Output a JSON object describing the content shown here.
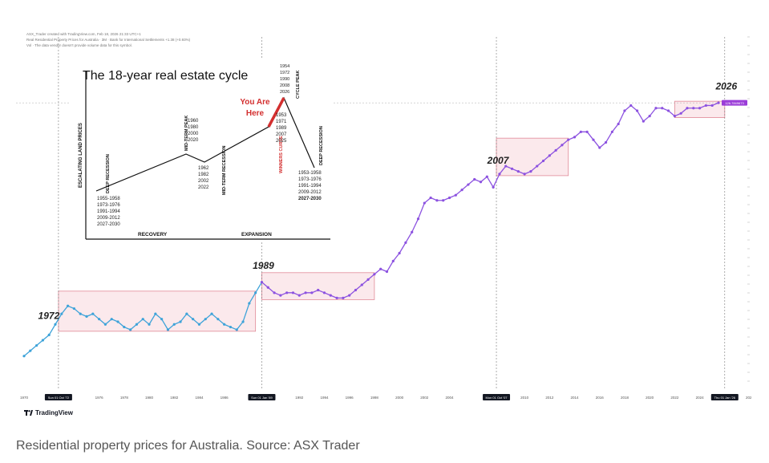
{
  "header": {
    "line1": "ASX_Trader created with TradingView.com, Feb 18, 2026 21:33 UTC+1",
    "line2": "Real Residential Property Prices for Australia · 3M · Bank for International Settlements",
    "line2_value": "+1.38 (+0.93%)",
    "line3": "Vol · The data vendor doesn't provide volume data for this symbol."
  },
  "logo": {
    "text": "TradingView"
  },
  "caption": "Residential property prices for Australia. Source: ASX Trader",
  "price_tag": "126.7849673",
  "colors": {
    "early_line": "#3ea3d9",
    "late_line": "#8c52e0",
    "box_fill": "#fbe9ec",
    "box_stroke": "#e08a98",
    "tag": "#9b3dd8",
    "accent_red": "#d32f2f"
  },
  "chart_data": {
    "type": "line",
    "title": "",
    "annotations": [
      "1972",
      "1989",
      "2007",
      "2026"
    ],
    "x_tick_labels": [
      "1970",
      "Sun 01 Oct '72",
      "1976",
      "1978",
      "1980",
      "1982",
      "1984",
      "1986",
      "Sun 01 Jan '89",
      "1992",
      "1994",
      "1996",
      "1998",
      "2000",
      "2002",
      "2004",
      "Mon 01 Oct '07",
      "2010",
      "2012",
      "2014",
      "2016",
      "2018",
      "2020",
      "2022",
      "2024",
      "Thu 01 Jan '26",
      "2028"
    ],
    "series": [
      {
        "x": [
          1970.0,
          1970.5,
          1971.0,
          1971.5,
          1972.0,
          1972.5,
          1973.0,
          1973.5,
          1974.0,
          1974.5,
          1975.0,
          1975.5,
          1976.0,
          1976.5,
          1977.0,
          1977.5,
          1978.0,
          1978.5,
          1979.0,
          1979.5,
          1980.0,
          1980.5,
          1981.0,
          1981.5,
          1982.0,
          1982.5,
          1983.0,
          1983.5,
          1984.0,
          1984.5,
          1985.0,
          1985.5,
          1986.0,
          1986.5,
          1987.0,
          1987.5,
          1988.0,
          1988.5,
          1989.0
        ],
        "values": [
          28,
          30,
          32,
          34,
          36,
          40,
          44,
          47,
          46,
          44,
          43,
          44,
          42,
          40,
          42,
          41,
          39,
          38,
          40,
          42,
          40,
          44,
          42,
          38,
          40,
          41,
          44,
          42,
          40,
          42,
          44,
          42,
          40,
          39,
          38,
          41,
          48,
          52,
          56
        ]
      },
      {
        "x": [
          1989.0,
          1989.5,
          1990.0,
          1990.5,
          1991.0,
          1991.5,
          1992.0,
          1992.5,
          1993.0,
          1993.5,
          1994.0,
          1994.5,
          1995.0,
          1995.5,
          1996.0,
          1996.5,
          1997.0,
          1997.5,
          1998.0,
          1998.5,
          1999.0,
          1999.5,
          2000.0,
          2000.5,
          2001.0,
          2001.5,
          2002.0,
          2002.5,
          2003.0,
          2003.5,
          2004.0,
          2004.5,
          2005.0,
          2005.5,
          2006.0,
          2006.5,
          2007.0,
          2007.5,
          2008.0,
          2008.5,
          2009.0,
          2009.5,
          2010.0,
          2010.5,
          2011.0,
          2011.5,
          2012.0,
          2012.5,
          2013.0,
          2013.5,
          2014.0,
          2014.5,
          2015.0,
          2015.5,
          2016.0,
          2016.5,
          2017.0,
          2017.5,
          2018.0,
          2018.5,
          2019.0,
          2019.5,
          2020.0,
          2020.5,
          2021.0,
          2021.5,
          2022.0,
          2022.5,
          2023.0,
          2023.5,
          2024.0,
          2024.5,
          2025.0,
          2025.5
        ],
        "values": [
          56,
          54,
          52,
          51,
          52,
          52,
          51,
          52,
          52,
          53,
          52,
          51,
          50,
          50,
          51,
          53,
          55,
          57,
          59,
          61,
          60,
          64,
          67,
          71,
          75,
          80,
          86,
          88,
          87,
          87,
          88,
          89,
          91,
          93,
          95,
          94,
          96,
          92,
          97,
          100,
          99,
          98,
          97,
          98,
          100,
          102,
          104,
          106,
          108,
          110,
          111,
          113,
          113,
          110,
          107,
          109,
          113,
          116,
          121,
          123,
          121,
          117,
          119,
          122,
          122,
          121,
          119,
          120,
          122,
          122,
          122,
          123,
          123,
          124
        ]
      }
    ],
    "ylim": [
      20,
      135
    ],
    "inset": {
      "title": "The 18-year real estate cycle",
      "y_label": "ESCALATING LAND PRICES",
      "x_labels": [
        "RECOVERY",
        "EXPANSION"
      ],
      "phase_labels": [
        "DEEP RECESSION",
        "MID-TERM PEAK",
        "MID-TERM RECESSION",
        "CYCLE PEAK",
        "WINNERS CURSE",
        "DEEP RECESSION"
      ],
      "you_are_here": [
        "You Are",
        "Here"
      ],
      "years_deep_recession": [
        "1955-1958",
        "1973-1976",
        "1991-1994",
        "2009-2012",
        "2027-2030"
      ],
      "years_midterm_peak": [
        "1960",
        "1980",
        "2000",
        "2020"
      ],
      "years_midterm_recession": [
        "1962",
        "1982",
        "2002",
        "2022"
      ],
      "years_cycle_peak": [
        "1954",
        "1972",
        "1990",
        "2008",
        "2026"
      ],
      "years_winners_curse": [
        "1953",
        "1971",
        "1989",
        "2007",
        "2025"
      ],
      "years_end_recession": [
        "1953-1958",
        "1973-1976",
        "1991-1994",
        "2009-2012",
        "2027-2030"
      ]
    }
  }
}
